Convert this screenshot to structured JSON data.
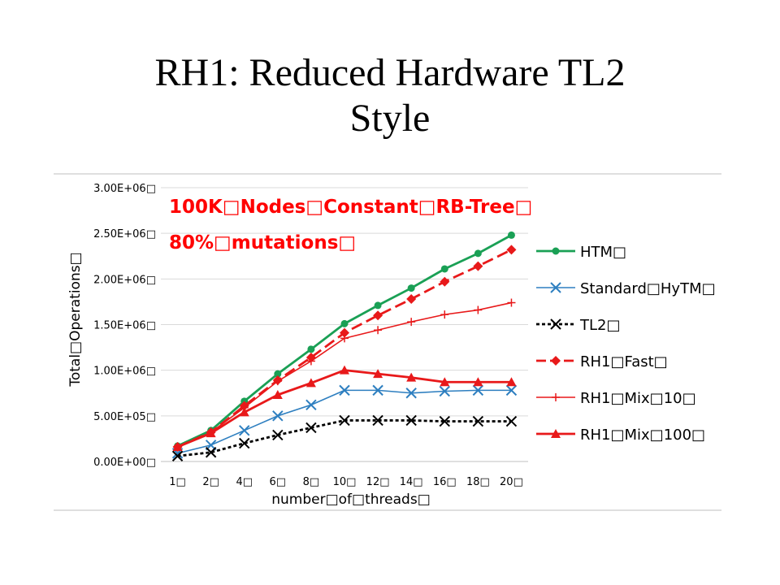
{
  "slide": {
    "title_line1": "RH1: Reduced Hardware TL2",
    "title_line2": "Style"
  },
  "chart_data": {
    "type": "line",
    "annotation_line1": "100K□Nodes□Constant□RB-Tree□",
    "annotation_line2": "80%□mutations□",
    "annotation_color": "#ff0000",
    "ylabel": "Total□Operations□",
    "xlabel": "number□of□threads□",
    "x_tick_labels": [
      "1□",
      "2□",
      "4□",
      "6□",
      "8□",
      "10□",
      "12□",
      "14□",
      "16□",
      "18□",
      "20□"
    ],
    "y_tick_values": [
      0,
      500000,
      1000000,
      1500000,
      2000000,
      2500000,
      3000000
    ],
    "y_tick_labels": [
      "0.00E+00□",
      "5.00E+05□",
      "1.00E+06□",
      "1.50E+06□",
      "2.00E+06□",
      "2.50E+06□",
      "3.00E+06□"
    ],
    "ylim": [
      0,
      3000000
    ],
    "grid": "horizontal",
    "legend_position": "right",
    "series": [
      {
        "name": "HTM□",
        "color": "#1aa055",
        "marker": "circle",
        "dash": "solid",
        "values": [
          170000,
          340000,
          660000,
          960000,
          1230000,
          1510000,
          1710000,
          1900000,
          2110000,
          2280000,
          2480000
        ]
      },
      {
        "name": "Standard□HyTM□",
        "color": "#2e7fc0",
        "marker": "x",
        "dash": "solid",
        "values": [
          90000,
          180000,
          340000,
          500000,
          620000,
          780000,
          780000,
          750000,
          770000,
          780000,
          780000
        ]
      },
      {
        "name": "TL2□",
        "color": "#000000",
        "marker": "x",
        "dash": "dashed",
        "values": [
          60000,
          100000,
          200000,
          290000,
          370000,
          450000,
          450000,
          450000,
          440000,
          440000,
          440000
        ]
      },
      {
        "name": "RH1□Fast□",
        "color": "#e8191a",
        "marker": "diamond",
        "dash": "dashed",
        "values": [
          160000,
          320000,
          610000,
          890000,
          1140000,
          1410000,
          1600000,
          1780000,
          1970000,
          2140000,
          2320000
        ]
      },
      {
        "name": "RH1□Mix□10□",
        "color": "#e8191a",
        "marker": "plus",
        "dash": "solid",
        "values": [
          160000,
          320000,
          590000,
          880000,
          1100000,
          1350000,
          1440000,
          1530000,
          1610000,
          1660000,
          1740000
        ]
      },
      {
        "name": "RH1□Mix□100□",
        "color": "#e8191a",
        "marker": "triangle",
        "dash": "solid",
        "values": [
          160000,
          310000,
          540000,
          730000,
          860000,
          1000000,
          960000,
          920000,
          870000,
          870000,
          870000
        ]
      }
    ]
  }
}
